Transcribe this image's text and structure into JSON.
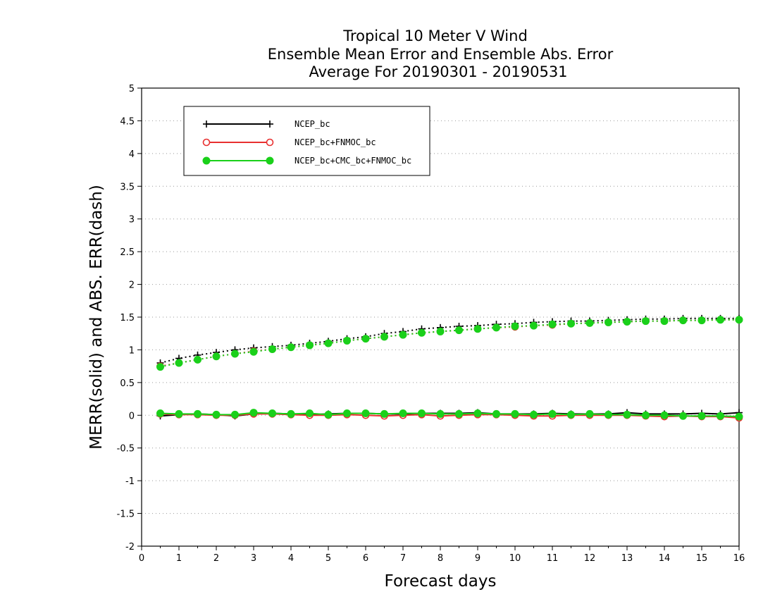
{
  "chart_data": {
    "type": "line",
    "title_lines": [
      "Tropical 10 Meter V Wind",
      "Ensemble Mean Error and Ensemble Abs. Error",
      "Average For 20190301 - 20190531"
    ],
    "xlabel": "Forecast days",
    "ylabel": "MERR(solid) and ABS. ERR(dash)",
    "xlim": [
      0,
      16
    ],
    "ylim": [
      -2,
      5
    ],
    "x_ticks": [
      "0",
      "1",
      "2",
      "3",
      "4",
      "5",
      "6",
      "7",
      "8",
      "9",
      "10",
      "11",
      "12",
      "13",
      "14",
      "15",
      "16"
    ],
    "y_ticks": [
      "-2",
      "-1.5",
      "-1",
      "-0.5",
      "0",
      "0.5",
      "1",
      "1.5",
      "2",
      "2.5",
      "3",
      "3.5",
      "4",
      "4.5",
      "5"
    ],
    "y_tick_values": [
      -2,
      -1.5,
      -1,
      -0.5,
      0,
      0.5,
      1,
      1.5,
      2,
      2.5,
      3,
      3.5,
      4,
      4.5,
      5
    ],
    "grid": "horizontal-dotted",
    "legend_position": "top-left",
    "x": [
      0.5,
      1,
      1.5,
      2,
      2.5,
      3,
      3.5,
      4,
      4.5,
      5,
      5.5,
      6,
      6.5,
      7,
      7.5,
      8,
      8.5,
      9,
      9.5,
      10,
      10.5,
      11,
      11.5,
      12,
      12.5,
      13,
      13.5,
      14,
      14.5,
      15,
      15.5,
      16
    ],
    "series": [
      {
        "name": "NCEP_bc",
        "color": "#000000",
        "marker": "plus",
        "merr": [
          -0.01,
          0.01,
          0.02,
          0.01,
          -0.01,
          0.02,
          0.03,
          0.02,
          0.01,
          0.02,
          0.03,
          0.03,
          0.02,
          0.02,
          0.03,
          0.03,
          0.03,
          0.04,
          0.02,
          0.02,
          0.02,
          0.03,
          0.02,
          0.02,
          0.02,
          0.04,
          0.02,
          0.02,
          0.02,
          0.03,
          0.02,
          0.04
        ],
        "abs_err": [
          0.8,
          0.87,
          0.92,
          0.96,
          1.0,
          1.03,
          1.05,
          1.07,
          1.1,
          1.13,
          1.17,
          1.2,
          1.25,
          1.28,
          1.32,
          1.34,
          1.36,
          1.37,
          1.39,
          1.4,
          1.42,
          1.43,
          1.44,
          1.44,
          1.45,
          1.46,
          1.47,
          1.47,
          1.48,
          1.48,
          1.48,
          1.48
        ]
      },
      {
        "name": "NCEP_bc+FNMOC_bc",
        "color": "#e83030",
        "marker": "open-circle",
        "merr": [
          0.02,
          0.01,
          0.01,
          0.0,
          0.0,
          0.02,
          0.02,
          0.01,
          0.0,
          0.0,
          0.01,
          0.0,
          -0.01,
          0.0,
          0.01,
          -0.01,
          0.0,
          0.01,
          0.01,
          0.0,
          -0.01,
          -0.01,
          0.0,
          0.0,
          0.0,
          0.0,
          -0.01,
          -0.02,
          -0.01,
          -0.02,
          -0.02,
          -0.04
        ],
        "abs_err": [
          0.75,
          0.8,
          0.85,
          0.9,
          0.94,
          0.98,
          1.01,
          1.04,
          1.07,
          1.1,
          1.14,
          1.17,
          1.2,
          1.23,
          1.26,
          1.28,
          1.3,
          1.32,
          1.34,
          1.35,
          1.37,
          1.38,
          1.4,
          1.41,
          1.42,
          1.43,
          1.44,
          1.44,
          1.45,
          1.45,
          1.46,
          1.46
        ]
      },
      {
        "name": "NCEP_bc+CMC_bc+FNMOC_bc",
        "color": "#1ad01a",
        "marker": "filled-circle",
        "merr": [
          0.03,
          0.02,
          0.02,
          0.01,
          0.01,
          0.04,
          0.03,
          0.02,
          0.03,
          0.01,
          0.03,
          0.03,
          0.02,
          0.03,
          0.03,
          0.02,
          0.02,
          0.03,
          0.02,
          0.02,
          0.01,
          0.02,
          0.01,
          0.02,
          0.01,
          0.01,
          0.0,
          0.0,
          -0.01,
          -0.01,
          -0.01,
          -0.02
        ],
        "abs_err": [
          0.74,
          0.8,
          0.85,
          0.9,
          0.94,
          0.97,
          1.01,
          1.04,
          1.07,
          1.1,
          1.14,
          1.17,
          1.2,
          1.23,
          1.26,
          1.28,
          1.3,
          1.32,
          1.34,
          1.36,
          1.37,
          1.39,
          1.4,
          1.41,
          1.42,
          1.43,
          1.44,
          1.44,
          1.45,
          1.45,
          1.46,
          1.46
        ]
      }
    ]
  }
}
